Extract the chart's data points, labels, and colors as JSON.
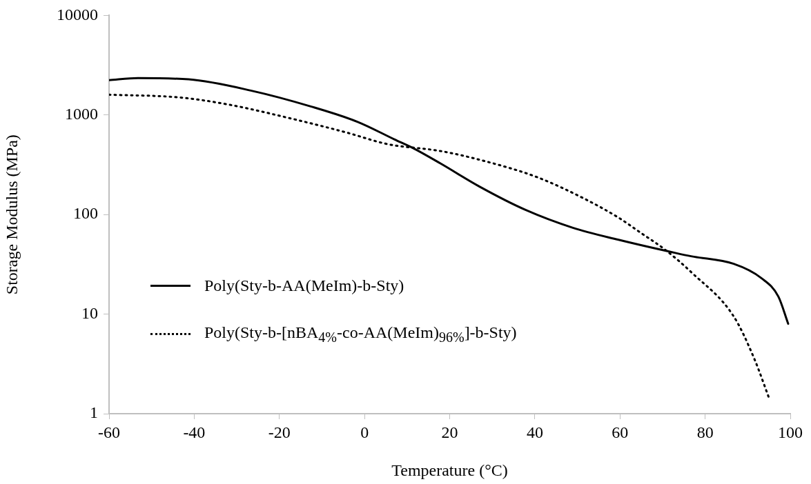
{
  "chart_data": {
    "type": "line",
    "xlabel": "Temperature (°C)",
    "ylabel": "Storage Modulus (MPa)",
    "xlim": [
      -60,
      100
    ],
    "xticks": [
      -60,
      -40,
      -20,
      0,
      20,
      40,
      60,
      80,
      100
    ],
    "ylim": [
      1,
      10000
    ],
    "yticks": [
      1,
      10,
      100,
      1000,
      10000
    ],
    "log": "y",
    "grid": false,
    "legend": "left",
    "marker": "none",
    "series": [
      {
        "name": "Poly(Sty-b-AA(MeIm)-b-Sty)",
        "color": "#000000",
        "line_style": "solid",
        "x": [
          -60,
          -53.2,
          -41.3,
          -26.7,
          -12.5,
          -1.6,
          7,
          11.5,
          17.9,
          27,
          37.9,
          48.8,
          59.5,
          73.2,
          76.9,
          86.7,
          93.2,
          97.2,
          99.5
        ],
        "values": [
          2240,
          2350,
          2280,
          1760,
          1215,
          853,
          570,
          463,
          325,
          191,
          111,
          74,
          56,
          41,
          38,
          32,
          23,
          15,
          8
        ]
      },
      {
        "name": "Poly(Sty-b-[nBA$_{4%}$-co-AA(MeIm)$_{96%}$]-b-Sty)",
        "color": "#000000",
        "line_style": "dotted",
        "x": [
          -60,
          -43.4,
          -32,
          -17.4,
          -4.4,
          5.4,
          17.9,
          28.6,
          40.7,
          51.4,
          59.5,
          65,
          70.4,
          76.9,
          86.7,
          91.5,
          95.1
        ],
        "values": [
          1600,
          1500,
          1275,
          925,
          670,
          510,
          434,
          341,
          236,
          146,
          94,
          65,
          45,
          26,
          9.5,
          3.6,
          1.4
        ]
      }
    ]
  }
}
